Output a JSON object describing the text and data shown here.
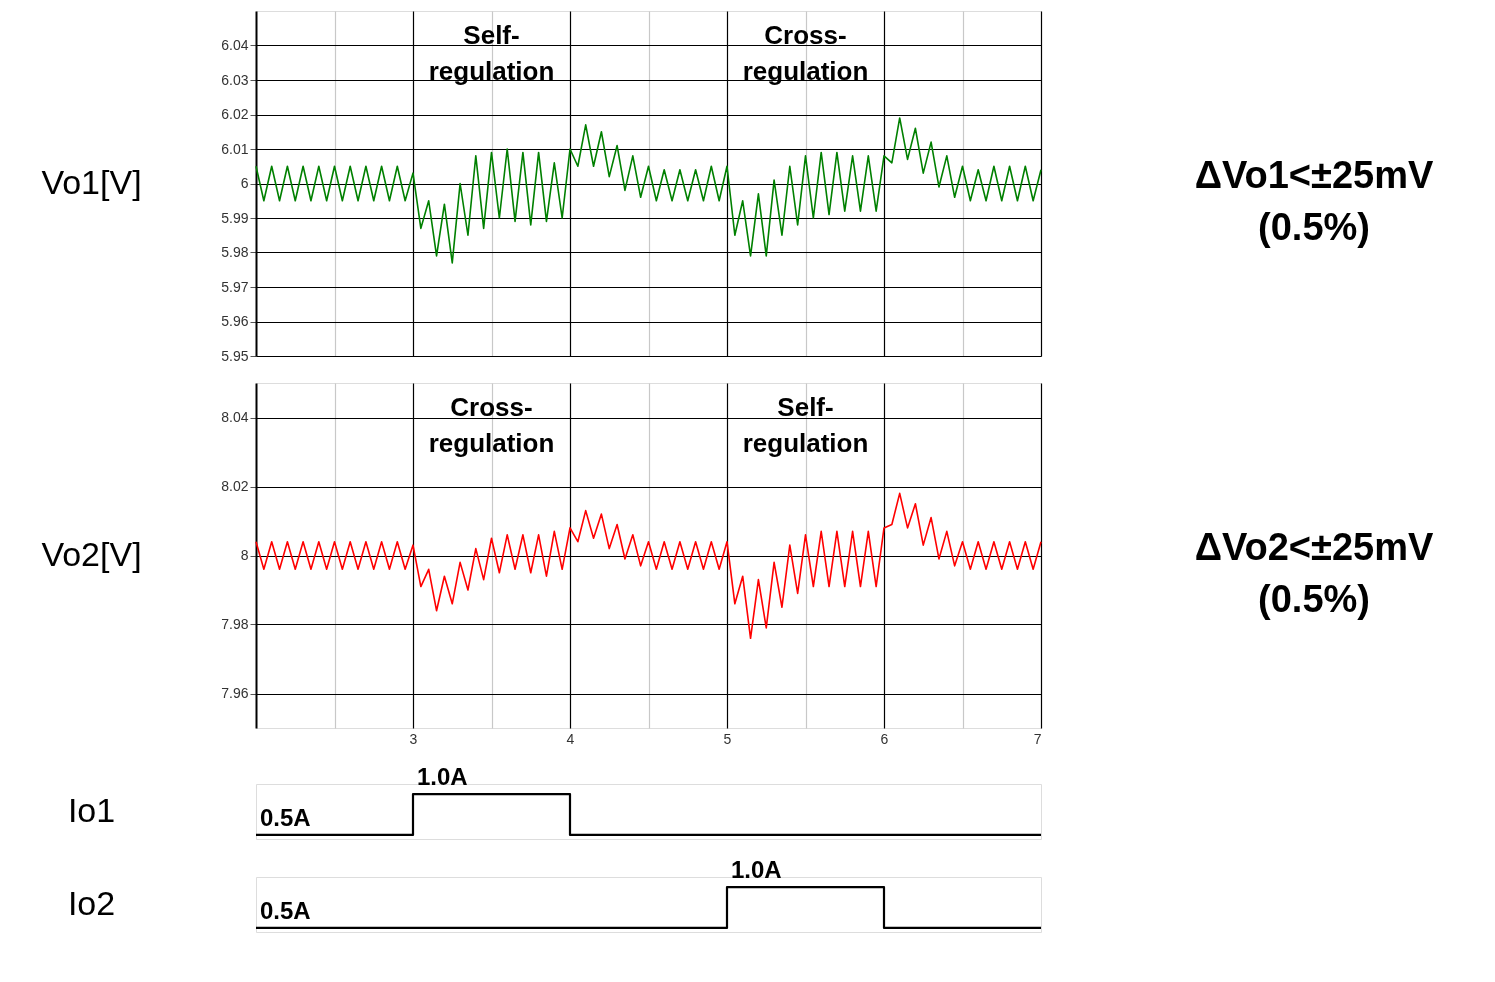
{
  "chart_data": [
    {
      "type": "line",
      "ylabel": "Vo1[V]",
      "xlim": [
        2,
        7
      ],
      "xticks": [
        {
          "value": 2.5,
          "label": null
        },
        3,
        {
          "value": 3.5,
          "label": null
        },
        4,
        {
          "value": 4.5,
          "label": null
        },
        5,
        {
          "value": 5.5,
          "label": null
        },
        6,
        {
          "value": 6.5,
          "label": null
        },
        7
      ],
      "ylim": [
        5.95,
        6.05
      ],
      "yticks": [
        5.95,
        5.96,
        5.97,
        5.98,
        5.99,
        6,
        6.01,
        6.02,
        6.03,
        6.04
      ],
      "grid": true,
      "tick_labels": "y",
      "annotations": [
        "Self-regulation",
        "Cross-regulation",
        "ΔVo1<±25mV",
        "(0.5%)"
      ],
      "x": [
        2.0,
        2.05,
        2.1,
        2.15,
        2.2,
        2.25,
        2.3,
        2.35,
        2.4,
        2.45,
        2.5,
        2.55,
        2.6,
        2.65,
        2.7,
        2.75,
        2.8,
        2.85,
        2.9,
        2.95,
        3.0,
        3.05,
        3.1,
        3.15,
        3.2,
        3.25,
        3.3,
        3.35,
        3.4,
        3.45,
        3.5,
        3.55,
        3.6,
        3.65,
        3.7,
        3.75,
        3.8,
        3.85,
        3.9,
        3.95,
        4.0,
        4.05,
        4.1,
        4.15,
        4.2,
        4.25,
        4.3,
        4.35,
        4.4,
        4.45,
        4.5,
        4.55,
        4.6,
        4.65,
        4.7,
        4.75,
        4.8,
        4.85,
        4.9,
        4.95,
        5.0,
        5.05,
        5.1,
        5.15,
        5.2,
        5.25,
        5.3,
        5.35,
        5.4,
        5.45,
        5.5,
        5.55,
        5.6,
        5.65,
        5.7,
        5.75,
        5.8,
        5.85,
        5.9,
        5.95,
        6.0,
        6.05,
        6.1,
        6.15,
        6.2,
        6.25,
        6.3,
        6.35,
        6.4,
        6.45,
        6.5,
        6.55,
        6.6,
        6.65,
        6.7,
        6.75,
        6.8,
        6.85,
        6.9,
        6.95,
        7.0
      ],
      "series": [
        {
          "color": "#008000",
          "values": [
            6.005,
            5.995,
            6.005,
            5.995,
            6.005,
            5.995,
            6.005,
            5.995,
            6.005,
            5.995,
            6.005,
            5.995,
            6.005,
            5.995,
            6.005,
            5.995,
            6.005,
            5.995,
            6.005,
            5.995,
            6.003,
            5.987,
            5.995,
            5.979,
            5.994,
            5.977,
            6.0,
            5.985,
            6.008,
            5.987,
            6.009,
            5.99,
            6.01,
            5.989,
            6.009,
            5.988,
            6.009,
            5.989,
            6.006,
            5.99,
            6.01,
            6.005,
            6.017,
            6.005,
            6.015,
            6.002,
            6.011,
            5.998,
            6.008,
            5.996,
            6.005,
            5.995,
            6.004,
            5.995,
            6.004,
            5.995,
            6.004,
            5.995,
            6.005,
            5.995,
            6.005,
            5.985,
            5.995,
            5.979,
            5.997,
            5.979,
            6.001,
            5.985,
            6.005,
            5.988,
            6.008,
            5.99,
            6.009,
            5.991,
            6.009,
            5.992,
            6.008,
            5.992,
            6.008,
            5.992,
            6.008,
            6.006,
            6.019,
            6.007,
            6.016,
            6.003,
            6.012,
            5.999,
            6.008,
            5.996,
            6.005,
            5.995,
            6.004,
            5.995,
            6.005,
            5.995,
            6.005,
            5.995,
            6.005,
            5.995,
            6.004
          ]
        }
      ]
    },
    {
      "type": "line",
      "ylabel": "Vo2[V]",
      "xlim": [
        2,
        7
      ],
      "xticks": [
        {
          "value": 2.5,
          "label": null
        },
        3,
        {
          "value": 3.5,
          "label": null
        },
        4,
        {
          "value": 4.5,
          "label": null
        },
        5,
        {
          "value": 5.5,
          "label": null
        },
        6,
        {
          "value": 6.5,
          "label": null
        },
        7
      ],
      "ylim": [
        7.95,
        8.05
      ],
      "yticks": [
        7.96,
        7.98,
        8,
        8.02,
        8.04
      ],
      "grid": true,
      "annotations": [
        "Cross-regulation",
        "Self-regulation",
        "ΔVo2<±25mV",
        "(0.5%)"
      ],
      "x": [
        2.0,
        2.05,
        2.1,
        2.15,
        2.2,
        2.25,
        2.3,
        2.35,
        2.4,
        2.45,
        2.5,
        2.55,
        2.6,
        2.65,
        2.7,
        2.75,
        2.8,
        2.85,
        2.9,
        2.95,
        3.0,
        3.05,
        3.1,
        3.15,
        3.2,
        3.25,
        3.3,
        3.35,
        3.4,
        3.45,
        3.5,
        3.55,
        3.6,
        3.65,
        3.7,
        3.75,
        3.8,
        3.85,
        3.9,
        3.95,
        4.0,
        4.05,
        4.1,
        4.15,
        4.2,
        4.25,
        4.3,
        4.35,
        4.4,
        4.45,
        4.5,
        4.55,
        4.6,
        4.65,
        4.7,
        4.75,
        4.8,
        4.85,
        4.9,
        4.95,
        5.0,
        5.05,
        5.1,
        5.15,
        5.2,
        5.25,
        5.3,
        5.35,
        5.4,
        5.45,
        5.5,
        5.55,
        5.6,
        5.65,
        5.7,
        5.75,
        5.8,
        5.85,
        5.9,
        5.95,
        6.0,
        6.05,
        6.1,
        6.15,
        6.2,
        6.25,
        6.3,
        6.35,
        6.4,
        6.45,
        6.5,
        6.55,
        6.6,
        6.65,
        6.7,
        6.75,
        6.8,
        6.85,
        6.9,
        6.95,
        7.0
      ],
      "series": [
        {
          "color": "#ff0000",
          "values": [
            8.004,
            7.996,
            8.004,
            7.996,
            8.004,
            7.996,
            8.004,
            7.996,
            8.004,
            7.996,
            8.004,
            7.996,
            8.004,
            7.996,
            8.004,
            7.996,
            8.004,
            7.996,
            8.004,
            7.996,
            8.003,
            7.991,
            7.996,
            7.984,
            7.994,
            7.986,
            7.998,
            7.99,
            8.002,
            7.993,
            8.005,
            7.995,
            8.006,
            7.996,
            8.006,
            7.995,
            8.006,
            7.994,
            8.007,
            7.996,
            8.008,
            8.004,
            8.013,
            8.005,
            8.012,
            8.002,
            8.009,
            7.999,
            8.006,
            7.997,
            8.004,
            7.996,
            8.004,
            7.996,
            8.004,
            7.996,
            8.004,
            7.996,
            8.004,
            7.996,
            8.004,
            7.986,
            7.994,
            7.976,
            7.993,
            7.979,
            7.998,
            7.985,
            8.003,
            7.989,
            8.006,
            7.991,
            8.007,
            7.991,
            8.007,
            7.991,
            8.007,
            7.991,
            8.007,
            7.991,
            8.008,
            8.009,
            8.018,
            8.008,
            8.015,
            8.003,
            8.011,
            7.999,
            8.007,
            7.997,
            8.004,
            7.996,
            8.004,
            7.996,
            8.004,
            7.996,
            8.004,
            7.996,
            8.004,
            7.996,
            8.004
          ]
        }
      ]
    },
    {
      "type": "step",
      "ylabel": "Io1",
      "xlim": [
        2,
        7
      ],
      "tick_labels": false,
      "x": [
        2,
        3,
        4,
        7
      ],
      "series": [
        {
          "color": "#000000",
          "values": [
            0.5,
            1.0,
            0.5,
            0.5
          ],
          "value_labels": [
            "0.5A",
            "1.0A",
            null,
            null
          ]
        }
      ]
    },
    {
      "type": "step",
      "ylabel": "Io2",
      "xlim": [
        2,
        7
      ],
      "tick_labels": false,
      "x": [
        2,
        5,
        6,
        7
      ],
      "series": [
        {
          "color": "#000000",
          "values": [
            0.5,
            1.0,
            0.5,
            0.5
          ],
          "value_labels": [
            "0.5A",
            "1.0A",
            null,
            null
          ]
        }
      ]
    }
  ]
}
